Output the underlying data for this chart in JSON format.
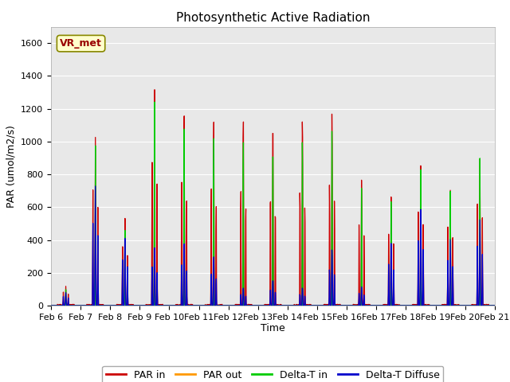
{
  "title": "Photosynthetic Active Radiation",
  "ylabel": "PAR (umol/m2/s)",
  "xlabel": "Time",
  "xlim": [
    0,
    360
  ],
  "ylim": [
    0,
    1700
  ],
  "yticks": [
    0,
    200,
    400,
    600,
    800,
    1000,
    1200,
    1400,
    1600
  ],
  "xtick_labels": [
    "Feb 6",
    "Feb 7",
    "Feb 8",
    "Feb 9",
    "Feb 10",
    "Feb 11",
    "Feb 12",
    "Feb 13",
    "Feb 14",
    "Feb 15",
    "Feb 16",
    "Feb 17",
    "Feb 18",
    "Feb 19",
    "Feb 20",
    "Feb 21"
  ],
  "xtick_positions": [
    0,
    24,
    48,
    72,
    96,
    120,
    144,
    168,
    192,
    216,
    240,
    264,
    288,
    312,
    336,
    360
  ],
  "bg_color": "#e8e8e8",
  "line_colors": {
    "PAR in": "#cc0000",
    "PAR out": "#ff9900",
    "Delta-T in": "#00cc00",
    "Delta-T Diffuse": "#0000cc"
  },
  "annotation_text": "VR_met",
  "annotation_color": "#990000",
  "annotation_bg": "#ffffcc",
  "title_fontsize": 11,
  "label_fontsize": 9,
  "tick_fontsize": 8
}
